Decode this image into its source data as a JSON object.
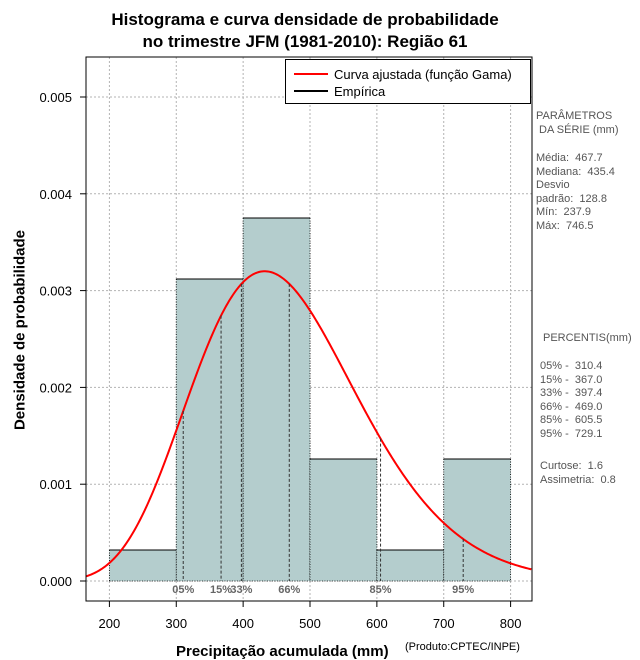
{
  "chart_data": {
    "type": "bar",
    "title_line1": "Histograma e curva densidade de probabilidade",
    "title_line2": "no trimestre JFM (1981-2010): Região 61",
    "xlabel": "Precipitação acumulada (mm)",
    "ylabel": "Densidade de probabilidade",
    "credit": "(Produto:CPTEC/INPE)",
    "xlim": [
      165,
      832
    ],
    "ylim": [
      0,
      0.0054
    ],
    "x_ticks": [
      200,
      300,
      400,
      500,
      600,
      700,
      800
    ],
    "y_ticks": [
      0.0,
      0.001,
      0.002,
      0.003,
      0.004,
      0.005
    ],
    "y_tick_labels": [
      "0.000",
      "0.001",
      "0.002",
      "0.003",
      "0.004",
      "0.005"
    ],
    "bins": [
      {
        "x0": 200,
        "x1": 300,
        "value": 0.00032
      },
      {
        "x0": 300,
        "x1": 400,
        "value": 0.00312
      },
      {
        "x0": 400,
        "x1": 500,
        "value": 0.00375
      },
      {
        "x0": 500,
        "x1": 600,
        "value": 0.00126
      },
      {
        "x0": 600,
        "x1": 700,
        "value": 0.00032
      },
      {
        "x0": 700,
        "x1": 800,
        "value": 0.00126
      }
    ],
    "gamma_fit": {
      "mean": 467.7,
      "sd": 128.8
    },
    "percentiles": [
      {
        "label": "05%",
        "value": 310.4
      },
      {
        "label": "15%",
        "value": 367.0
      },
      {
        "label": "33%",
        "value": 397.4
      },
      {
        "label": "66%",
        "value": 469.0
      },
      {
        "label": "85%",
        "value": 605.5
      },
      {
        "label": "95%",
        "value": 729.1
      }
    ],
    "legend": [
      {
        "label": "Curva ajustada (função Gama)",
        "color": "#ff0000"
      },
      {
        "label": "Empírica",
        "color": "#000000"
      }
    ],
    "colors": {
      "bar_fill": "#b4cdcd",
      "curve": "#ff0000",
      "grid": "#b3b3b3",
      "percentile_text": "#666666"
    }
  },
  "params_panel": {
    "heading": "PARÂMETROS\n DA SÉRIE (mm)",
    "body": "Média:  467.7\nMediana:  435.4\nDesvio\npadrão:  128.8\nMín:  237.9\nMáx:  746.5"
  },
  "percentis_panel": {
    "heading": "PERCENTIS(mm)",
    "body": "05% -  310.4\n15% -  367.0\n33% -  397.4\n66% -  469.0\n85% -  605.5\n95% -  729.1",
    "stats": "Curtose:  1.6\nAssimetria:  0.8"
  }
}
